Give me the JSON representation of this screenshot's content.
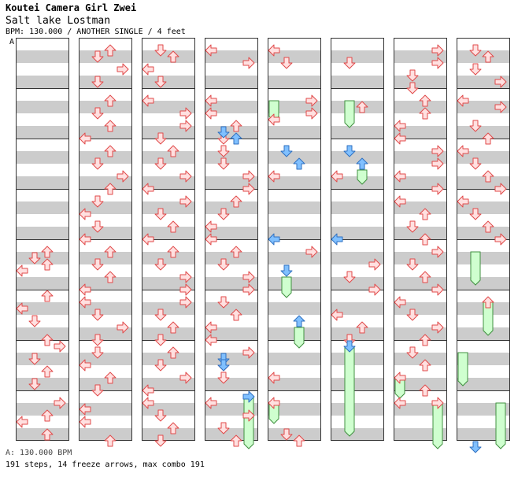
{
  "header": {
    "artist": "Koutei Camera Girl Zwei",
    "song": "Salt lake Lostman",
    "meta": "BPM: 130.000 / ANOTHER SINGLE / 4 feet",
    "section_marker": "A"
  },
  "footer": {
    "bpm_line": "A: 130.000 BPM",
    "stats_line": "191 steps, 14 freeze arrows, max combo 191"
  },
  "colors": {
    "stripe": "#cccccc",
    "panel_border": "#333333",
    "note_fill": "#ffe0e0",
    "note_stroke": "#e04a4a",
    "shock_fill": "#80c0ff",
    "shock_stroke": "#3070c0",
    "freeze_fill": "#cfffcf",
    "freeze_stroke": "#409040"
  },
  "chart_data": {
    "type": "step-chart",
    "columns_count": 8,
    "measures_per_column": 8,
    "lanes": [
      "left",
      "down",
      "up",
      "right"
    ],
    "notes": [
      {
        "c": 0,
        "m": 4,
        "l": 2,
        "b": 0.5
      },
      {
        "c": 0,
        "m": 4,
        "l": 1,
        "b": 1
      },
      {
        "c": 0,
        "m": 4,
        "l": 2,
        "b": 1.5
      },
      {
        "c": 0,
        "m": 4,
        "l": 0,
        "b": 2
      },
      {
        "c": 0,
        "m": 5,
        "l": 2,
        "b": 0
      },
      {
        "c": 0,
        "m": 5,
        "l": 0,
        "b": 1
      },
      {
        "c": 0,
        "m": 5,
        "l": 1,
        "b": 2
      },
      {
        "c": 0,
        "m": 5,
        "l": 2,
        "b": 3.5
      },
      {
        "c": 0,
        "m": 6,
        "l": 3,
        "b": 0
      },
      {
        "c": 0,
        "m": 6,
        "l": 1,
        "b": 1
      },
      {
        "c": 0,
        "m": 6,
        "l": 2,
        "b": 2
      },
      {
        "c": 0,
        "m": 6,
        "l": 1,
        "b": 3
      },
      {
        "c": 0,
        "m": 7,
        "l": 3,
        "b": 0.5
      },
      {
        "c": 0,
        "m": 7,
        "l": 2,
        "b": 1.5
      },
      {
        "c": 0,
        "m": 7,
        "l": 0,
        "b": 2
      },
      {
        "c": 0,
        "m": 7,
        "l": 2,
        "b": 3
      },
      {
        "c": 1,
        "m": 0,
        "l": 2,
        "b": 0.5
      },
      {
        "c": 1,
        "m": 0,
        "l": 1,
        "b": 1
      },
      {
        "c": 1,
        "m": 0,
        "l": 3,
        "b": 2
      },
      {
        "c": 1,
        "m": 0,
        "l": 1,
        "b": 3
      },
      {
        "c": 1,
        "m": 1,
        "l": 2,
        "b": 0.5
      },
      {
        "c": 1,
        "m": 1,
        "l": 1,
        "b": 1.5
      },
      {
        "c": 1,
        "m": 1,
        "l": 2,
        "b": 2.5
      },
      {
        "c": 1,
        "m": 1,
        "l": 0,
        "b": 3.5
      },
      {
        "c": 1,
        "m": 2,
        "l": 2,
        "b": 0.5
      },
      {
        "c": 1,
        "m": 2,
        "l": 1,
        "b": 1.5
      },
      {
        "c": 1,
        "m": 2,
        "l": 3,
        "b": 2.5
      },
      {
        "c": 1,
        "m": 2,
        "l": 2,
        "b": 3.5
      },
      {
        "c": 1,
        "m": 3,
        "l": 1,
        "b": 0.5
      },
      {
        "c": 1,
        "m": 3,
        "l": 0,
        "b": 1.5
      },
      {
        "c": 1,
        "m": 3,
        "l": 1,
        "b": 2.5
      },
      {
        "c": 1,
        "m": 3,
        "l": 0,
        "b": 3.5
      },
      {
        "c": 1,
        "m": 4,
        "l": 2,
        "b": 0.5
      },
      {
        "c": 1,
        "m": 4,
        "l": 1,
        "b": 1.5
      },
      {
        "c": 1,
        "m": 4,
        "l": 2,
        "b": 2.5
      },
      {
        "c": 1,
        "m": 4,
        "l": 0,
        "b": 3.5
      },
      {
        "c": 1,
        "m": 5,
        "l": 0,
        "b": 0.5
      },
      {
        "c": 1,
        "m": 5,
        "l": 1,
        "b": 1.5
      },
      {
        "c": 1,
        "m": 5,
        "l": 3,
        "b": 2.5
      },
      {
        "c": 1,
        "m": 5,
        "l": 1,
        "b": 3.5
      },
      {
        "c": 1,
        "m": 6,
        "l": 1,
        "b": 0.5
      },
      {
        "c": 1,
        "m": 6,
        "l": 0,
        "b": 1.5
      },
      {
        "c": 1,
        "m": 6,
        "l": 2,
        "b": 2.5
      },
      {
        "c": 1,
        "m": 6,
        "l": 1,
        "b": 3.5
      },
      {
        "c": 1,
        "m": 7,
        "l": 0,
        "b": 1
      },
      {
        "c": 1,
        "m": 7,
        "l": 0,
        "b": 2
      },
      {
        "c": 1,
        "m": 7,
        "l": 2,
        "b": 3.5
      },
      {
        "c": 2,
        "m": 0,
        "l": 1,
        "b": 0.5
      },
      {
        "c": 2,
        "m": 0,
        "l": 2,
        "b": 1
      },
      {
        "c": 2,
        "m": 0,
        "l": 0,
        "b": 2
      },
      {
        "c": 2,
        "m": 0,
        "l": 1,
        "b": 3
      },
      {
        "c": 2,
        "m": 1,
        "l": 0,
        "b": 0.5
      },
      {
        "c": 2,
        "m": 1,
        "l": 3,
        "b": 1.5
      },
      {
        "c": 2,
        "m": 1,
        "l": 3,
        "b": 2.5
      },
      {
        "c": 2,
        "m": 1,
        "l": 1,
        "b": 3.5
      },
      {
        "c": 2,
        "m": 2,
        "l": 2,
        "b": 0.5
      },
      {
        "c": 2,
        "m": 2,
        "l": 1,
        "b": 1.5
      },
      {
        "c": 2,
        "m": 2,
        "l": 3,
        "b": 2.5
      },
      {
        "c": 2,
        "m": 2,
        "l": 0,
        "b": 3.5
      },
      {
        "c": 2,
        "m": 3,
        "l": 3,
        "b": 0.5
      },
      {
        "c": 2,
        "m": 3,
        "l": 1,
        "b": 1.5
      },
      {
        "c": 2,
        "m": 3,
        "l": 2,
        "b": 2.5
      },
      {
        "c": 2,
        "m": 3,
        "l": 0,
        "b": 3.5
      },
      {
        "c": 2,
        "m": 4,
        "l": 2,
        "b": 0.5
      },
      {
        "c": 2,
        "m": 4,
        "l": 1,
        "b": 1.5
      },
      {
        "c": 2,
        "m": 4,
        "l": 3,
        "b": 2.5
      },
      {
        "c": 2,
        "m": 4,
        "l": 3,
        "b": 3.5
      },
      {
        "c": 2,
        "m": 5,
        "l": 3,
        "b": 0.5
      },
      {
        "c": 2,
        "m": 5,
        "l": 1,
        "b": 1.5
      },
      {
        "c": 2,
        "m": 5,
        "l": 2,
        "b": 2.5
      },
      {
        "c": 2,
        "m": 5,
        "l": 1,
        "b": 3.5
      },
      {
        "c": 2,
        "m": 6,
        "l": 2,
        "b": 0.5
      },
      {
        "c": 2,
        "m": 6,
        "l": 1,
        "b": 1.5
      },
      {
        "c": 2,
        "m": 6,
        "l": 3,
        "b": 2.5
      },
      {
        "c": 2,
        "m": 6,
        "l": 0,
        "b": 3.5
      },
      {
        "c": 2,
        "m": 7,
        "l": 0,
        "b": 0.5
      },
      {
        "c": 2,
        "m": 7,
        "l": 1,
        "b": 1.5
      },
      {
        "c": 2,
        "m": 7,
        "l": 2,
        "b": 2.5
      },
      {
        "c": 2,
        "m": 7,
        "l": 1,
        "b": 3.5
      },
      {
        "c": 3,
        "m": 0,
        "l": 0,
        "b": 0.5
      },
      {
        "c": 3,
        "m": 0,
        "l": 3,
        "b": 1.5
      },
      {
        "c": 3,
        "m": 1,
        "l": 0,
        "b": 0.5
      },
      {
        "c": 3,
        "m": 1,
        "l": 0,
        "b": 1.5
      },
      {
        "c": 3,
        "m": 1,
        "l": 2,
        "b": 2.5
      },
      {
        "c": 3,
        "m": 1,
        "l": 1,
        "b": 3.5
      },
      {
        "c": 3,
        "m": 2,
        "l": 1,
        "b": 0.5
      },
      {
        "c": 3,
        "m": 2,
        "l": 1,
        "b": 1.5
      },
      {
        "c": 3,
        "m": 2,
        "l": 3,
        "b": 2.5
      },
      {
        "c": 3,
        "m": 2,
        "l": 3,
        "b": 3.5
      },
      {
        "c": 3,
        "m": 3,
        "l": 2,
        "b": 0.5
      },
      {
        "c": 3,
        "m": 3,
        "l": 1,
        "b": 1.5
      },
      {
        "c": 3,
        "m": 3,
        "l": 0,
        "b": 2.5
      },
      {
        "c": 3,
        "m": 3,
        "l": 0,
        "b": 3.5
      },
      {
        "c": 3,
        "m": 4,
        "l": 2,
        "b": 0.5
      },
      {
        "c": 3,
        "m": 4,
        "l": 1,
        "b": 1.5
      },
      {
        "c": 3,
        "m": 4,
        "l": 3,
        "b": 2.5
      },
      {
        "c": 3,
        "m": 4,
        "l": 3,
        "b": 3.5
      },
      {
        "c": 3,
        "m": 5,
        "l": 1,
        "b": 0.5
      },
      {
        "c": 3,
        "m": 5,
        "l": 2,
        "b": 1.5
      },
      {
        "c": 3,
        "m": 5,
        "l": 0,
        "b": 2.5
      },
      {
        "c": 3,
        "m": 5,
        "l": 0,
        "b": 3.5
      },
      {
        "c": 3,
        "m": 6,
        "l": 3,
        "b": 0.5
      },
      {
        "c": 3,
        "m": 6,
        "l": 1,
        "b": 1.5
      },
      {
        "c": 3,
        "m": 6,
        "l": 1,
        "b": 2.5
      },
      {
        "c": 3,
        "m": 7,
        "l": 0,
        "b": 0.5
      },
      {
        "c": 3,
        "m": 7,
        "l": 3,
        "b": 1.5
      },
      {
        "c": 3,
        "m": 7,
        "l": 1,
        "b": 2.5
      },
      {
        "c": 3,
        "m": 7,
        "l": 2,
        "b": 3.5
      },
      {
        "c": 4,
        "m": 0,
        "l": 0,
        "b": 0.5
      },
      {
        "c": 4,
        "m": 0,
        "l": 1,
        "b": 1.5
      },
      {
        "c": 4,
        "m": 1,
        "l": 3,
        "b": 0.5
      },
      {
        "c": 4,
        "m": 1,
        "l": 3,
        "b": 1.5
      },
      {
        "c": 4,
        "m": 1,
        "l": 0,
        "b": 2
      },
      {
        "c": 4,
        "m": 2,
        "l": 0,
        "b": 2.5
      },
      {
        "c": 4,
        "m": 4,
        "l": 3,
        "b": 0.5
      },
      {
        "c": 4,
        "m": 6,
        "l": 0,
        "b": 2.5
      },
      {
        "c": 4,
        "m": 7,
        "l": 0,
        "b": 0.5
      },
      {
        "c": 4,
        "m": 7,
        "l": 2,
        "b": 3.5
      },
      {
        "c": 4,
        "m": 7,
        "l": 1,
        "b": 3
      },
      {
        "c": 5,
        "m": 0,
        "l": 1,
        "b": 1.5
      },
      {
        "c": 5,
        "m": 1,
        "l": 2,
        "b": 1
      },
      {
        "c": 5,
        "m": 2,
        "l": 0,
        "b": 2.5
      },
      {
        "c": 5,
        "m": 4,
        "l": 3,
        "b": 1.5
      },
      {
        "c": 5,
        "m": 4,
        "l": 1,
        "b": 2.5
      },
      {
        "c": 5,
        "m": 4,
        "l": 3,
        "b": 3.5
      },
      {
        "c": 5,
        "m": 5,
        "l": 0,
        "b": 1.5
      },
      {
        "c": 5,
        "m": 5,
        "l": 2,
        "b": 2.5
      },
      {
        "c": 5,
        "m": 5,
        "l": 1,
        "b": 3.5
      },
      {
        "c": 6,
        "m": 0,
        "l": 3,
        "b": 0.5
      },
      {
        "c": 6,
        "m": 0,
        "l": 3,
        "b": 1.5
      },
      {
        "c": 6,
        "m": 0,
        "l": 1,
        "b": 2.5
      },
      {
        "c": 6,
        "m": 0,
        "l": 1,
        "b": 3.5
      },
      {
        "c": 6,
        "m": 1,
        "l": 2,
        "b": 0.5
      },
      {
        "c": 6,
        "m": 1,
        "l": 2,
        "b": 1.5
      },
      {
        "c": 6,
        "m": 1,
        "l": 0,
        "b": 2.5
      },
      {
        "c": 6,
        "m": 1,
        "l": 0,
        "b": 3.5
      },
      {
        "c": 6,
        "m": 2,
        "l": 3,
        "b": 0.5
      },
      {
        "c": 6,
        "m": 2,
        "l": 3,
        "b": 1.5
      },
      {
        "c": 6,
        "m": 2,
        "l": 0,
        "b": 2.5
      },
      {
        "c": 6,
        "m": 2,
        "l": 3,
        "b": 3.5
      },
      {
        "c": 6,
        "m": 3,
        "l": 0,
        "b": 0.5
      },
      {
        "c": 6,
        "m": 3,
        "l": 2,
        "b": 1.5
      },
      {
        "c": 6,
        "m": 3,
        "l": 1,
        "b": 2.5
      },
      {
        "c": 6,
        "m": 3,
        "l": 2,
        "b": 3.5
      },
      {
        "c": 6,
        "m": 4,
        "l": 3,
        "b": 0.5
      },
      {
        "c": 6,
        "m": 4,
        "l": 1,
        "b": 1.5
      },
      {
        "c": 6,
        "m": 4,
        "l": 2,
        "b": 2.5
      },
      {
        "c": 6,
        "m": 4,
        "l": 3,
        "b": 3.5
      },
      {
        "c": 6,
        "m": 5,
        "l": 0,
        "b": 0.5
      },
      {
        "c": 6,
        "m": 5,
        "l": 1,
        "b": 1.5
      },
      {
        "c": 6,
        "m": 5,
        "l": 3,
        "b": 2.5
      },
      {
        "c": 6,
        "m": 5,
        "l": 2,
        "b": 3.5
      },
      {
        "c": 6,
        "m": 6,
        "l": 1,
        "b": 0.5
      },
      {
        "c": 6,
        "m": 6,
        "l": 2,
        "b": 1.5
      },
      {
        "c": 6,
        "m": 6,
        "l": 0,
        "b": 2.5
      },
      {
        "c": 6,
        "m": 6,
        "l": 2,
        "b": 3.5
      },
      {
        "c": 6,
        "m": 7,
        "l": 0,
        "b": 0.5
      },
      {
        "c": 6,
        "m": 7,
        "l": 3,
        "b": 0.5
      },
      {
        "c": 7,
        "m": 0,
        "l": 1,
        "b": 0.5
      },
      {
        "c": 7,
        "m": 0,
        "l": 2,
        "b": 1
      },
      {
        "c": 7,
        "m": 0,
        "l": 1,
        "b": 2
      },
      {
        "c": 7,
        "m": 0,
        "l": 3,
        "b": 3
      },
      {
        "c": 7,
        "m": 1,
        "l": 0,
        "b": 0.5
      },
      {
        "c": 7,
        "m": 1,
        "l": 3,
        "b": 1
      },
      {
        "c": 7,
        "m": 1,
        "l": 1,
        "b": 2.5
      },
      {
        "c": 7,
        "m": 1,
        "l": 2,
        "b": 3.5
      },
      {
        "c": 7,
        "m": 2,
        "l": 0,
        "b": 0.5
      },
      {
        "c": 7,
        "m": 2,
        "l": 1,
        "b": 1.5
      },
      {
        "c": 7,
        "m": 2,
        "l": 2,
        "b": 2.5
      },
      {
        "c": 7,
        "m": 2,
        "l": 3,
        "b": 3.5
      },
      {
        "c": 7,
        "m": 3,
        "l": 0,
        "b": 0.5
      },
      {
        "c": 7,
        "m": 3,
        "l": 1,
        "b": 1.5
      },
      {
        "c": 7,
        "m": 3,
        "l": 2,
        "b": 2.5
      },
      {
        "c": 7,
        "m": 3,
        "l": 3,
        "b": 3.5
      },
      {
        "c": 7,
        "m": 5,
        "l": 2,
        "b": 0.5
      }
    ],
    "shocks": [
      {
        "c": 3,
        "m": 1,
        "l": 1,
        "b": 3
      },
      {
        "c": 3,
        "m": 1,
        "l": 2,
        "b": 3.5
      },
      {
        "c": 3,
        "m": 6,
        "l": 1,
        "b": 1
      },
      {
        "c": 3,
        "m": 6,
        "l": 1,
        "b": 1.5
      },
      {
        "c": 3,
        "m": 7,
        "l": 3,
        "b": 0
      },
      {
        "c": 4,
        "m": 2,
        "l": 1,
        "b": 0.5
      },
      {
        "c": 4,
        "m": 2,
        "l": 2,
        "b": 1.5
      },
      {
        "c": 4,
        "m": 3,
        "l": 0,
        "b": 3.5
      },
      {
        "c": 4,
        "m": 4,
        "l": 1,
        "b": 2
      },
      {
        "c": 4,
        "m": 5,
        "l": 2,
        "b": 2
      },
      {
        "c": 5,
        "m": 2,
        "l": 1,
        "b": 0.5
      },
      {
        "c": 5,
        "m": 2,
        "l": 2,
        "b": 1.5
      },
      {
        "c": 5,
        "m": 3,
        "l": 0,
        "b": 3.5
      },
      {
        "c": 5,
        "m": 6,
        "l": 1,
        "b": 0
      },
      {
        "c": 7,
        "m": 7,
        "l": 1,
        "b": 4
      }
    ],
    "freezes": [
      {
        "c": 3,
        "m": 7,
        "l": 3,
        "b0": 0,
        "b1": 4
      },
      {
        "c": 4,
        "m": 1,
        "l": 0,
        "b0": 0.5,
        "b1": 2
      },
      {
        "c": 4,
        "m": 4,
        "l": 1,
        "b0": 2.5,
        "b1": 4
      },
      {
        "c": 4,
        "m": 5,
        "l": 2,
        "b0": 2.5,
        "b1": 4
      },
      {
        "c": 4,
        "m": 7,
        "l": 0,
        "b0": 0.5,
        "b1": 2
      },
      {
        "c": 5,
        "m": 1,
        "l": 1,
        "b0": 0.5,
        "b1": 2.5
      },
      {
        "c": 5,
        "m": 2,
        "l": 2,
        "b0": 2,
        "b1": 3
      },
      {
        "c": 5,
        "m": 6,
        "l": 1,
        "b0": 0,
        "b1": 7
      },
      {
        "c": 6,
        "m": 6,
        "l": 0,
        "b0": 2.5,
        "b1": 4
      },
      {
        "c": 6,
        "m": 7,
        "l": 3,
        "b0": 0.5,
        "b1": 4
      },
      {
        "c": 7,
        "m": 4,
        "l": 1,
        "b0": 0.5,
        "b1": 3
      },
      {
        "c": 7,
        "m": 5,
        "l": 2,
        "b0": 0.5,
        "b1": 3
      },
      {
        "c": 7,
        "m": 6,
        "l": 0,
        "b0": 0.5,
        "b1": 3
      },
      {
        "c": 7,
        "m": 7,
        "l": 3,
        "b0": 0.5,
        "b1": 4
      }
    ]
  }
}
